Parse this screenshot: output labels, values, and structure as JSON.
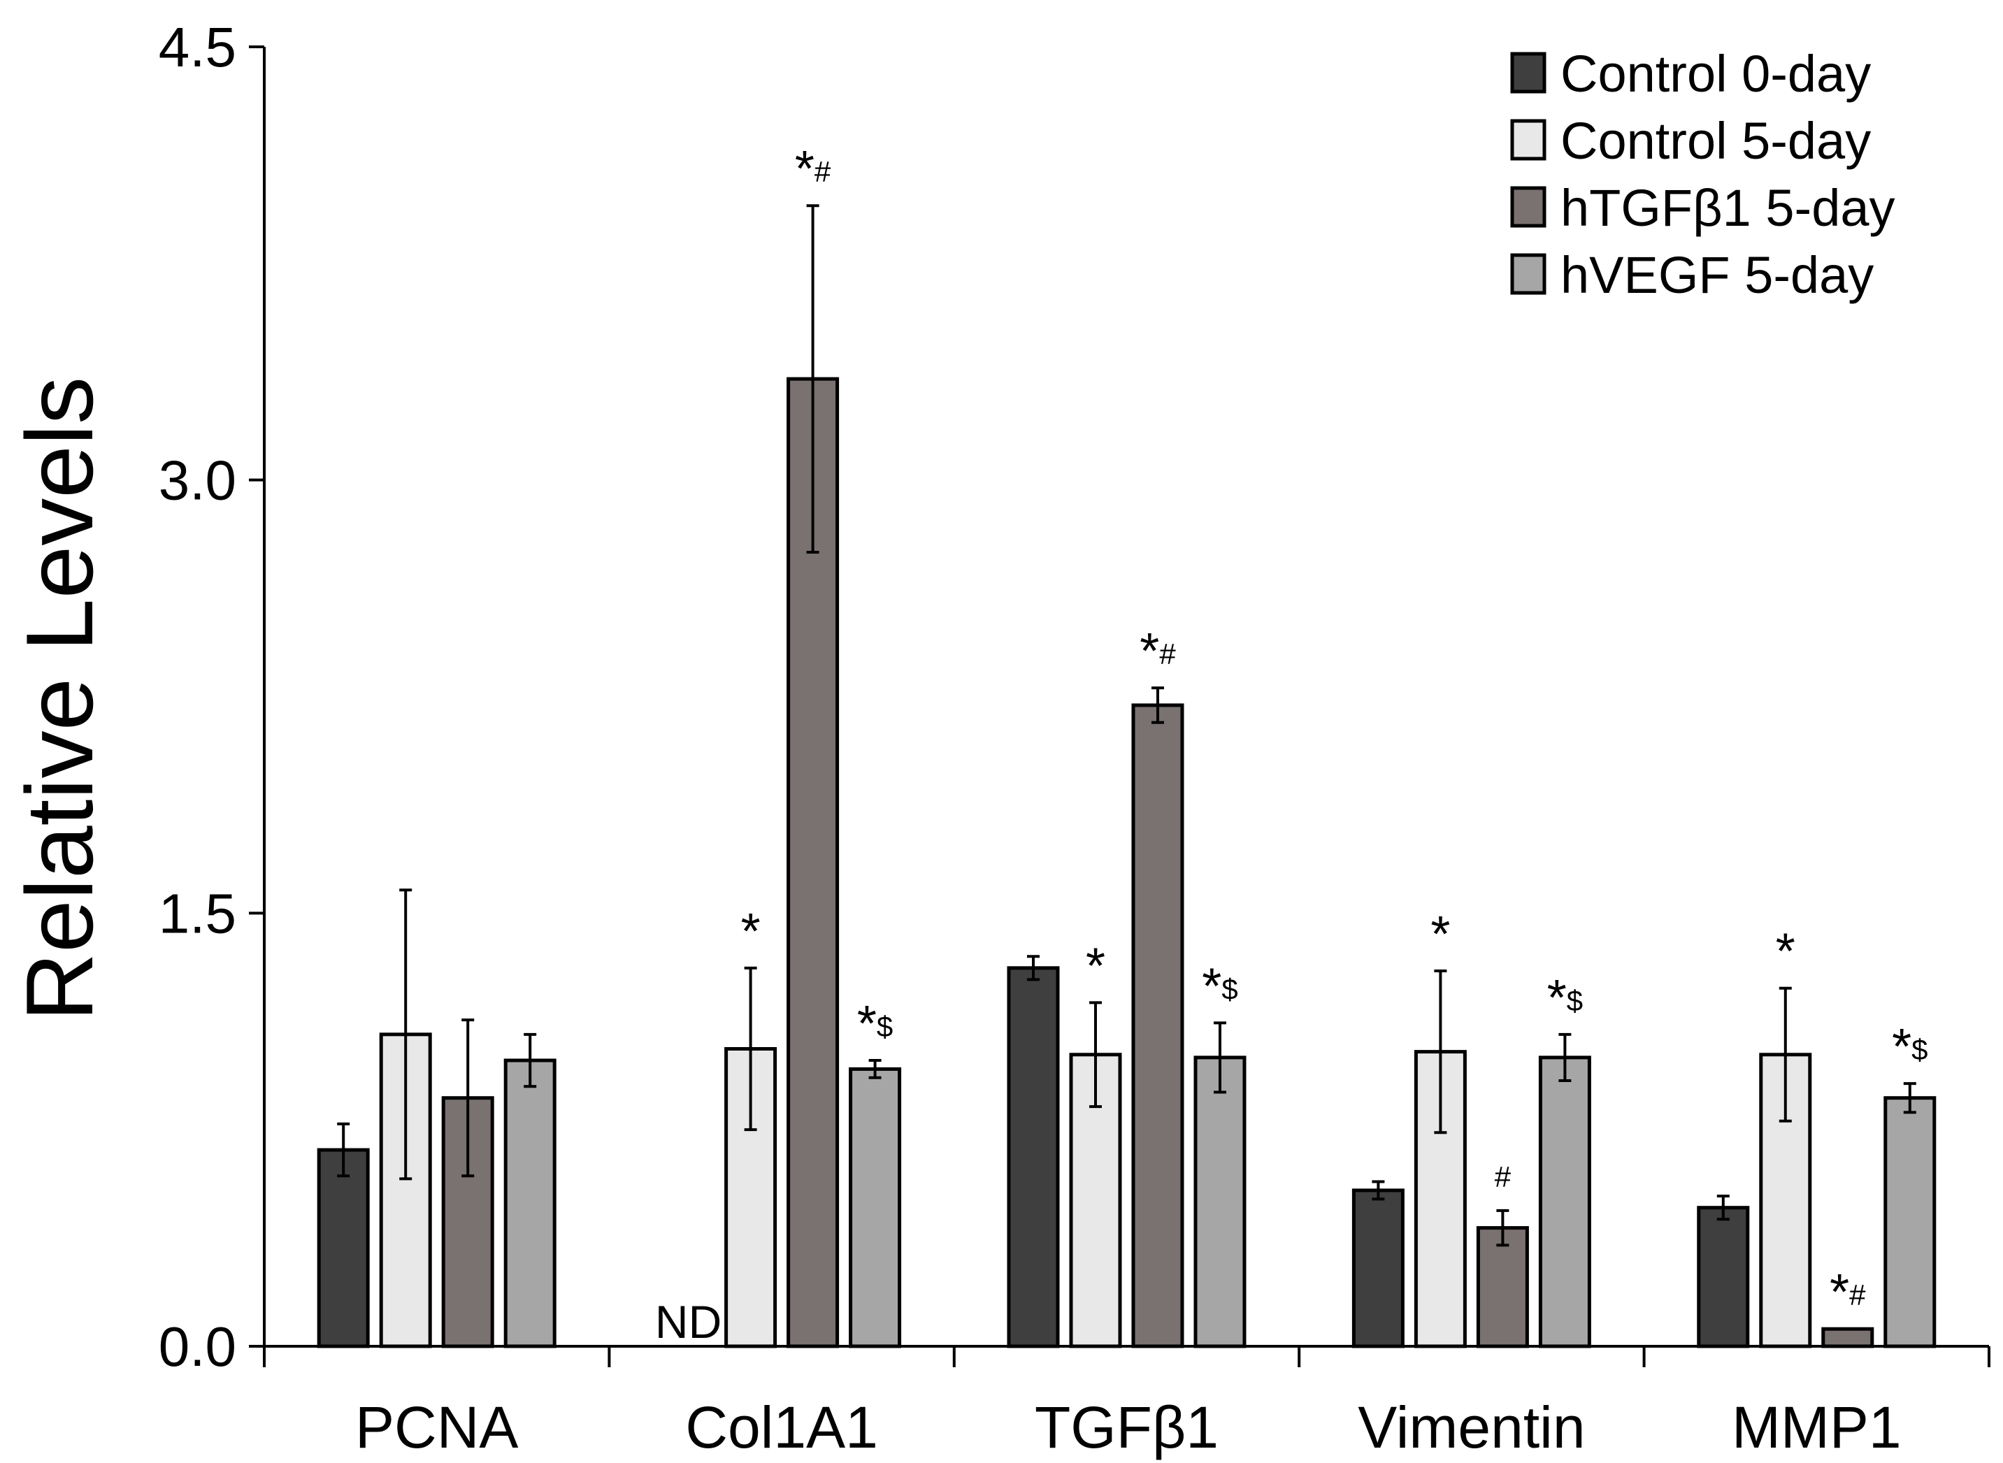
{
  "chart_data": {
    "type": "bar",
    "title": "",
    "xlabel": "",
    "ylabel": "Relative Levels",
    "ylim": [
      0,
      4.5
    ],
    "yticks": [
      "0.0",
      "1.5",
      "3.0",
      "4.5"
    ],
    "ytick_values": [
      0,
      1.5,
      3.0,
      4.5
    ],
    "grid": false,
    "legend_position": "top-right",
    "categories": [
      "PCNA",
      "Col1A1",
      "TGFβ1",
      "Vimentin",
      "MMP1"
    ],
    "series": [
      {
        "name": "Control 0-day",
        "color": "#3f3f3f",
        "values": [
          0.68,
          null,
          1.31,
          0.54,
          0.48
        ],
        "errors": [
          0.09,
          null,
          0.04,
          0.03,
          0.04
        ],
        "annotations": [
          "",
          "ND",
          "",
          "",
          ""
        ]
      },
      {
        "name": "Control 5-day",
        "color": "#e8e8e8",
        "values": [
          1.08,
          1.03,
          1.01,
          1.02,
          1.01
        ],
        "errors": [
          0.5,
          0.28,
          0.18,
          0.28,
          0.23
        ],
        "annotations": [
          "",
          "*",
          "*",
          "*",
          "*"
        ]
      },
      {
        "name": "hTGFβ1 5-day",
        "color": "#7a7171",
        "values": [
          0.86,
          3.35,
          2.22,
          0.41,
          0.06
        ],
        "errors": [
          0.27,
          0.6,
          0.06,
          0.06,
          0.0
        ],
        "annotations": [
          "",
          "*#",
          "*#",
          "#",
          "*#"
        ]
      },
      {
        "name": "hVEGF 5-day",
        "color": "#a6a6a6",
        "values": [
          0.99,
          0.96,
          1.0,
          1.0,
          0.86
        ],
        "errors": [
          0.09,
          0.03,
          0.12,
          0.08,
          0.05
        ],
        "annotations": [
          "",
          "*$",
          "*$",
          "*$",
          "*$"
        ]
      }
    ]
  }
}
